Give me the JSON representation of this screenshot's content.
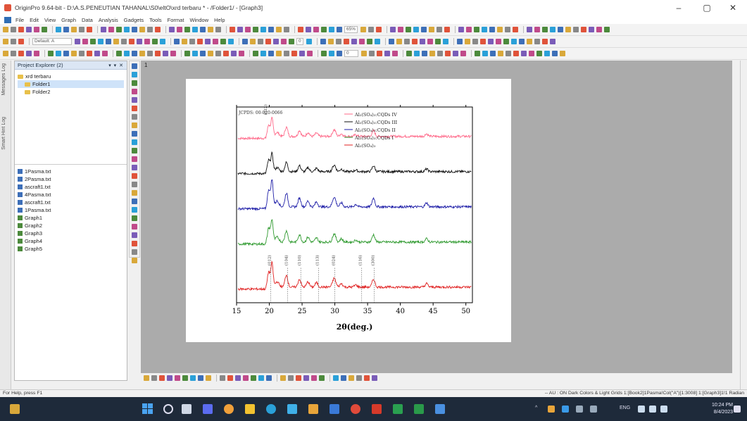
{
  "window": {
    "title": "OriginPro 9.64-bit - D:\\A.S.PENEUTIAN TAHANAL\\S0\\eltO\\xrd terbaru * - /Folder1/ - [Graph3]",
    "minimize": "–",
    "maximize": "▢",
    "close": "✕"
  },
  "menu": [
    "File",
    "Edit",
    "View",
    "Graph",
    "Data",
    "Analysis",
    "Gadgets",
    "Tools",
    "Format",
    "Window",
    "Help"
  ],
  "toolbar": {
    "zoom": "65%",
    "theme": "Default: A",
    "font_size": "0",
    "pct": "0"
  },
  "side_strip": {
    "label_top": "Messages Log",
    "label_bottom": "Smart Hint Log"
  },
  "explorer": {
    "title": "Project Explorer (2)",
    "controls": "▾ ▾ ✕",
    "tree": [
      {
        "label": "xrd terbaru",
        "indent": 0
      },
      {
        "label": "Folder1",
        "indent": 1,
        "selected": true
      },
      {
        "label": "Folder2",
        "indent": 1
      }
    ],
    "files": [
      {
        "label": "1Pasma.txt",
        "kind": "book"
      },
      {
        "label": "2Pasma.txt",
        "kind": "book"
      },
      {
        "label": "ascraft1.txt",
        "kind": "book"
      },
      {
        "label": "4Pasma.txt",
        "kind": "book"
      },
      {
        "label": "ascraft1.txt",
        "kind": "book"
      },
      {
        "label": "1Pasma.txt",
        "kind": "book"
      },
      {
        "label": "Graph1",
        "kind": "graph"
      },
      {
        "label": "Graph2",
        "kind": "graph"
      },
      {
        "label": "Graph3",
        "kind": "graph"
      },
      {
        "label": "Graph4",
        "kind": "graph"
      },
      {
        "label": "Graph5",
        "kind": "graph"
      }
    ]
  },
  "workspace": {
    "layer_label": "1"
  },
  "chart_data": {
    "type": "line",
    "annotation": "JCPDS: 00-020-0066",
    "xlabel": "2θ(deg.)",
    "xlim": [
      15,
      51
    ],
    "xticks": [
      15,
      20,
      25,
      30,
      35,
      40,
      45,
      50
    ],
    "series": [
      {
        "name": "Al₂(SO₄)₃:CQDs IV",
        "color": "#ff6a8a",
        "baseline": 0.85,
        "scale": 0.6
      },
      {
        "name": "Al₂(SO₄)₃:CQDs III",
        "color": "#111111",
        "baseline": 0.67,
        "scale": 0.6
      },
      {
        "name": "Al₂(SO₄)₃:CQDs II",
        "color": "#1f1fa8",
        "baseline": 0.49,
        "scale": 0.9
      },
      {
        "name": "Al₂(SO₄)₃:CQDs I",
        "color": "#2f9a2f",
        "baseline": 0.31,
        "scale": 0.75
      },
      {
        "name": "Al₂(SO₄)₃",
        "color": "#e02020",
        "baseline": 0.08,
        "scale": 0.8
      }
    ],
    "peaks": [
      {
        "x": 19.9,
        "h": 0.35,
        "w": 0.25
      },
      {
        "x": 20.4,
        "h": 0.55,
        "w": 0.25
      },
      {
        "x": 21.2,
        "h": 0.12,
        "w": 0.4
      },
      {
        "x": 22.6,
        "h": 0.28,
        "w": 0.3
      },
      {
        "x": 24.6,
        "h": 0.18,
        "w": 0.3
      },
      {
        "x": 25.9,
        "h": 0.12,
        "w": 0.3
      },
      {
        "x": 27.2,
        "h": 0.1,
        "w": 0.3
      },
      {
        "x": 29.9,
        "h": 0.2,
        "w": 0.35
      },
      {
        "x": 31.0,
        "h": 0.08,
        "w": 0.3
      },
      {
        "x": 33.2,
        "h": 0.05,
        "w": 0.3
      },
      {
        "x": 35.9,
        "h": 0.18,
        "w": 0.3
      },
      {
        "x": 44.0,
        "h": 0.08,
        "w": 0.3
      }
    ],
    "reference_lines": [
      {
        "x": 20.2,
        "label": "(012)"
      },
      {
        "x": 22.8,
        "label": "(104)"
      },
      {
        "x": 24.8,
        "label": "(110)"
      },
      {
        "x": 27.5,
        "label": "(113)"
      },
      {
        "x": 30.0,
        "label": "(024)"
      },
      {
        "x": 34.1,
        "label": "(116)"
      },
      {
        "x": 36.0,
        "label": "(300)"
      }
    ],
    "peak_labels": [
      "(012)",
      "(012)"
    ]
  },
  "status": {
    "left": "For Help, press F1",
    "right": "-- AU : ON Dark Colors & Light Grids 1:[Book2]1Pasma!Col(\"A\")[1:3008] 1:[Graph3]1!1 Radian"
  },
  "taskbar": {
    "time": "10:24 PM",
    "date": "8/4/2023",
    "lang": "ENG"
  }
}
